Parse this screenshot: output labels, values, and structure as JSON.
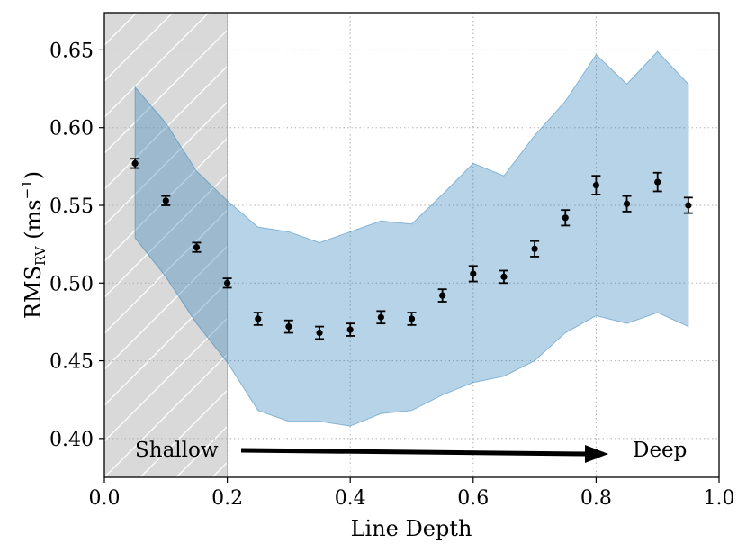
{
  "chart_data": {
    "type": "scatter",
    "title": "",
    "xlabel": "Line Depth",
    "ylabel": {
      "main": "RMS",
      "sub": "RV",
      "units_open": " (ms",
      "units_sup": "−1",
      "units_close": ")"
    },
    "xlim": [
      0.0,
      1.0
    ],
    "ylim": [
      0.375,
      0.674
    ],
    "xticks": [
      "0.0",
      "0.2",
      "0.4",
      "0.6",
      "0.8",
      "1.0"
    ],
    "yticks": [
      "0.40",
      "0.45",
      "0.50",
      "0.55",
      "0.60",
      "0.65"
    ],
    "grid": true,
    "shaded_region": {
      "x_from": 0.0,
      "x_to": 0.2,
      "fill": "#d9d9d9",
      "hatch": "diagonal"
    },
    "series": [
      {
        "name": "RMS_RV",
        "x": [
          0.05,
          0.1,
          0.15,
          0.2,
          0.25,
          0.3,
          0.35,
          0.4,
          0.45,
          0.5,
          0.55,
          0.6,
          0.65,
          0.7,
          0.75,
          0.8,
          0.85,
          0.9,
          0.95
        ],
        "y": [
          0.577,
          0.553,
          0.523,
          0.5,
          0.477,
          0.472,
          0.468,
          0.47,
          0.478,
          0.477,
          0.492,
          0.506,
          0.504,
          0.522,
          0.542,
          0.563,
          0.551,
          0.565,
          0.55
        ],
        "err": [
          0.003,
          0.003,
          0.003,
          0.003,
          0.004,
          0.004,
          0.004,
          0.004,
          0.004,
          0.004,
          0.004,
          0.005,
          0.004,
          0.005,
          0.005,
          0.006,
          0.005,
          0.006,
          0.005
        ],
        "color": "#000000"
      }
    ],
    "band": {
      "x": [
        0.05,
        0.1,
        0.15,
        0.2,
        0.25,
        0.3,
        0.35,
        0.4,
        0.45,
        0.5,
        0.55,
        0.6,
        0.65,
        0.7,
        0.75,
        0.8,
        0.85,
        0.9,
        0.95
      ],
      "upper": [
        0.626,
        0.603,
        0.572,
        0.553,
        0.536,
        0.533,
        0.526,
        0.533,
        0.54,
        0.538,
        0.557,
        0.577,
        0.569,
        0.595,
        0.617,
        0.647,
        0.628,
        0.649,
        0.628
      ],
      "lower": [
        0.529,
        0.504,
        0.474,
        0.449,
        0.418,
        0.411,
        0.411,
        0.408,
        0.416,
        0.418,
        0.428,
        0.436,
        0.44,
        0.45,
        0.468,
        0.479,
        0.474,
        0.481,
        0.472
      ],
      "color": "#1f77b4",
      "opacity": 0.32
    },
    "annotations": {
      "shallow": "Shallow",
      "deep": "Deep"
    }
  }
}
